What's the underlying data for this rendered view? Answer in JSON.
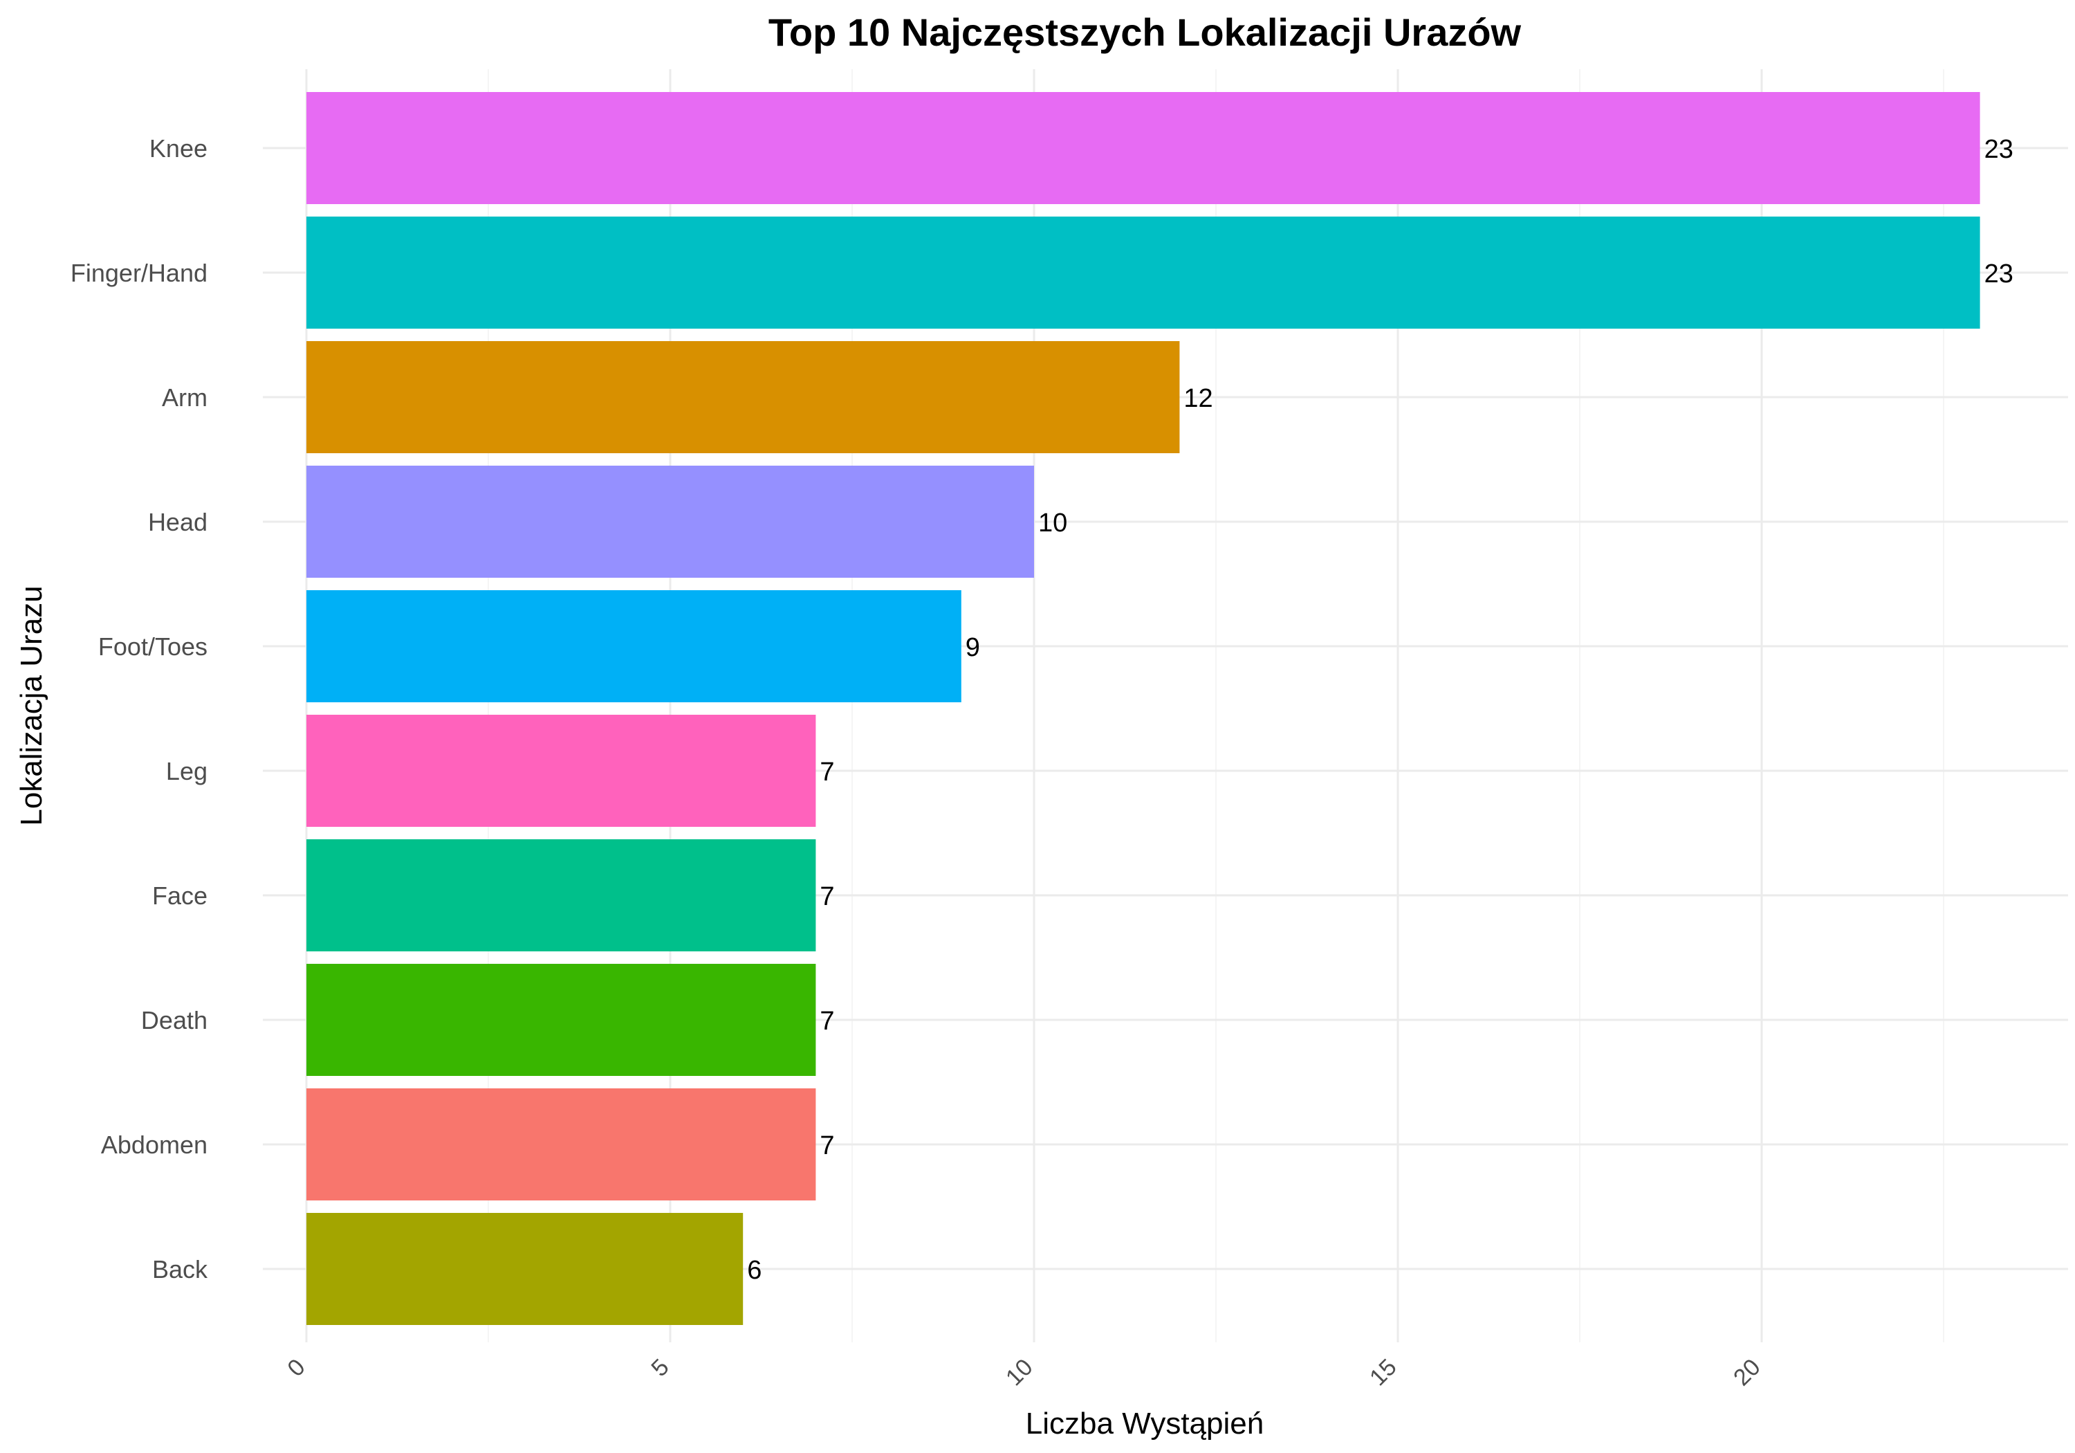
{
  "chart_data": {
    "type": "bar",
    "orientation": "horizontal",
    "title": "Top 10 Najczęstszych Lokalizacji Urazów",
    "xlabel": "Liczba Wystąpień",
    "ylabel": "Lokalizacja Urazu",
    "categories": [
      "Knee",
      "Finger/Hand",
      "Arm",
      "Head",
      "Foot/Toes",
      "Leg",
      "Face",
      "Death",
      "Abdomen",
      "Back"
    ],
    "values": [
      23,
      23,
      12,
      10,
      9,
      7,
      7,
      7,
      7,
      6
    ],
    "colors": [
      "#E76BF3",
      "#00BFC4",
      "#D89000",
      "#9590FF",
      "#00B0F6",
      "#FF62BC",
      "#00C08B",
      "#39B600",
      "#F8766D",
      "#A3A500"
    ],
    "xlim": [
      0,
      24
    ],
    "xticks": [
      0,
      5,
      10,
      15,
      20
    ],
    "grid": true,
    "legend": "none"
  }
}
